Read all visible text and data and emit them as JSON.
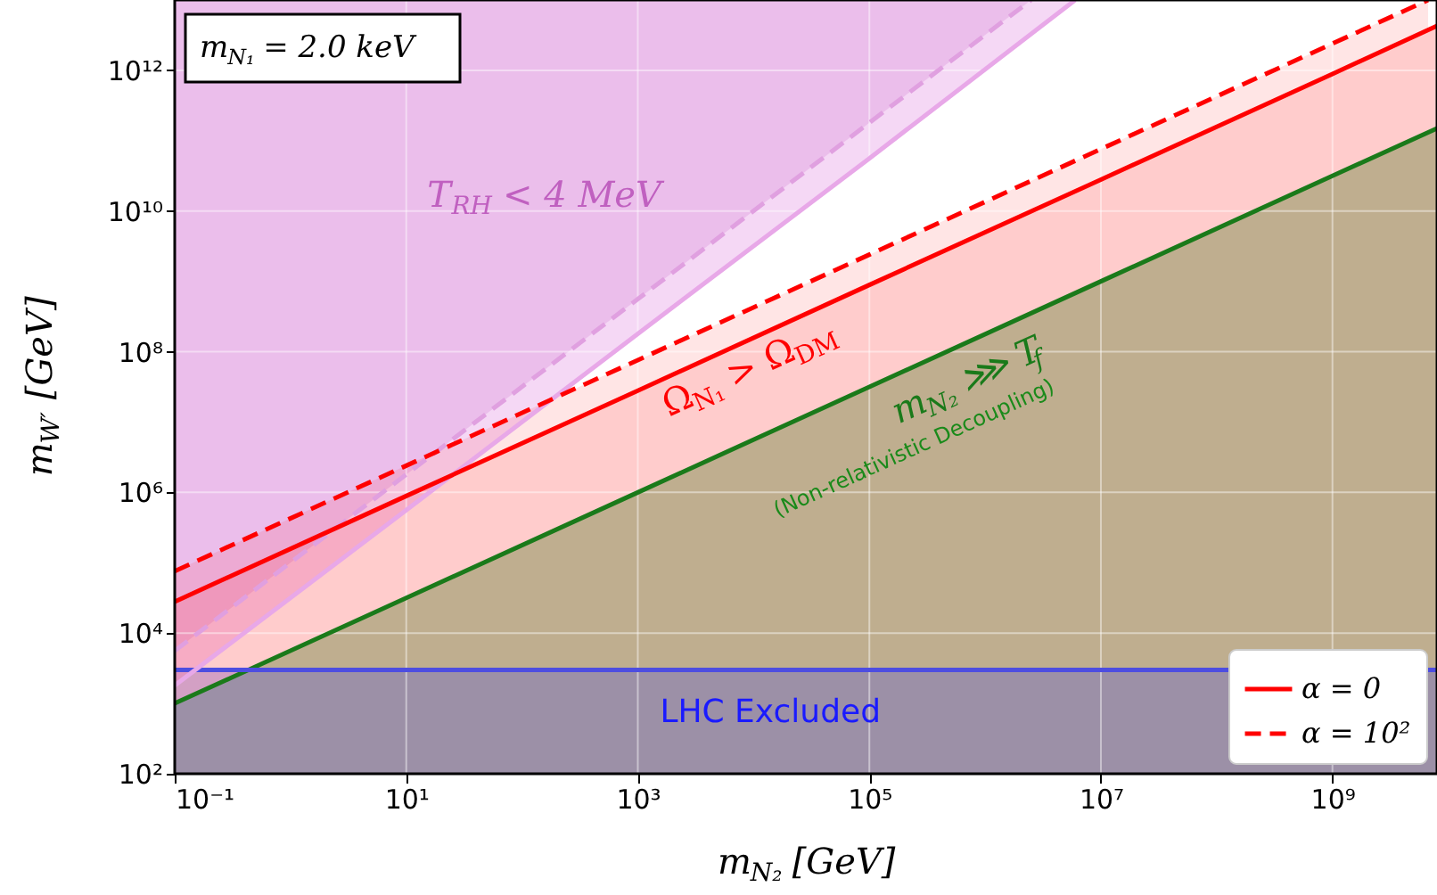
{
  "chart_data": {
    "type": "line",
    "xlabel": "m$_{N₂}$ [GeV]",
    "ylabel": "m$_{W′}$ [GeV]",
    "xlim": [
      0.1,
      8000000000
    ],
    "ylim": [
      100,
      10000000000000
    ],
    "xticks": [
      {
        "value": 0.1,
        "label": "10⁻¹"
      },
      {
        "value": 10,
        "label": "10¹"
      },
      {
        "value": 1000,
        "label": "10³"
      },
      {
        "value": 100000,
        "label": "10⁵"
      },
      {
        "value": 10000000,
        "label": "10⁷"
      },
      {
        "value": 1000000000,
        "label": "10⁹"
      }
    ],
    "yticks": [
      {
        "value": 100,
        "label": "10²"
      },
      {
        "value": 10000,
        "label": "10⁴"
      },
      {
        "value": 1000000,
        "label": "10⁶"
      },
      {
        "value": 100000000,
        "label": "10⁸"
      },
      {
        "value": 10000000000,
        "label": "10¹⁰"
      },
      {
        "value": 1000000000000,
        "label": "10¹²"
      }
    ],
    "log": "xy",
    "grid": true,
    "legend": "bottom right",
    "series": [
      {
        "type": "area",
        "color": "#bfae8f",
        "x": [
          0.1,
          10,
          1000,
          100000,
          10000000,
          1000000000,
          8000000000
        ],
        "values": [
          1000,
          31600,
          1000000,
          31600000,
          1000000000,
          31600000000,
          150000000000
        ]
      },
      {
        "type": "line",
        "color": "#1a7a1a",
        "line_style": "solid",
        "x": [
          0.1,
          10,
          1000,
          100000,
          10000000,
          1000000000,
          8000000000
        ],
        "values": [
          1000,
          31600,
          1000000,
          31600000,
          1000000000,
          31600000000,
          150000000000
        ]
      },
      {
        "type": "line",
        "color": "#4d4de0",
        "line_style": "solid",
        "x": [
          0.1,
          10,
          1000,
          100000,
          10000000,
          8000000000
        ],
        "values": [
          3000,
          3000,
          3000,
          3000,
          3000,
          3000
        ],
        "lower": [
          100,
          100,
          100,
          100,
          100,
          100
        ],
        "upper": [
          3000,
          3000,
          3000,
          3000,
          3000,
          3000
        ]
      },
      {
        "type": "line",
        "color": "#e8a8e8",
        "line_style": "solid",
        "x": [
          0.1,
          10,
          1000,
          100000,
          6000000
        ],
        "values": [
          1800,
          560000,
          180000000,
          56000000000,
          10000000000000
        ],
        "lower": [
          1800,
          560000,
          180000000,
          56000000000,
          10000000000000
        ],
        "upper": [
          10000000000000,
          10000000000000,
          10000000000000,
          10000000000000,
          10000000000000
        ]
      },
      {
        "type": "line",
        "color": "#e0a0e0",
        "line_style": "dashed",
        "x": [
          0.1,
          10,
          1000,
          100000,
          2500000
        ],
        "values": [
          5600,
          1800000,
          560000000,
          180000000000,
          10000000000000
        ],
        "lower": [
          5600,
          1800000,
          560000000,
          180000000000,
          10000000000000
        ],
        "upper": [
          10000000000000,
          10000000000000,
          10000000000000,
          10000000000000,
          10000000000000
        ]
      },
      {
        "type": "line",
        "name": "α = 0",
        "color": "#ff0000",
        "line_style": "solid",
        "x": [
          0.1,
          10,
          1000,
          100000,
          10000000,
          1000000000,
          8000000000
        ],
        "values": [
          28000,
          890000,
          28000000,
          890000000,
          28000000000,
          890000000000,
          4300000000000
        ],
        "lower": [
          1000,
          31600,
          1000000,
          31600000,
          1000000000,
          31600000000,
          150000000000
        ],
        "upper": [
          28000,
          890000,
          28000000,
          890000000,
          28000000000,
          890000000000,
          4300000000000
        ]
      },
      {
        "type": "line",
        "name": "α = 10²",
        "color": "#ff0000",
        "line_style": "dashed",
        "x": [
          0.1,
          10,
          1000,
          100000,
          10000000,
          1000000000,
          6700000000
        ],
        "values": [
          76000,
          2400000,
          76000000,
          2400000000,
          76000000000,
          2400000000000,
          10000000000000
        ],
        "lower": [
          28000,
          890000,
          28000000,
          890000000,
          28000000000,
          890000000000,
          3700000000000
        ],
        "upper": [
          76000,
          2400000,
          76000000,
          2400000000,
          76000000000,
          2400000000000,
          10000000000000
        ]
      }
    ],
    "annotations": [
      "m$_{N₁}$ = 2.0 keV",
      "T$_{RH}$ < 4 MeV",
      "Ω$_{N₁}$ > Ω$_{DM}$",
      "m$_{N₂}$ ⋙ T$_{f}$",
      "(Non-relativistic Decoupling)",
      "LHC Excluded"
    ]
  }
}
